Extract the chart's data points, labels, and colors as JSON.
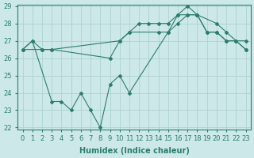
{
  "line1_x": [
    0,
    1,
    2,
    3,
    10,
    11,
    14,
    15,
    16,
    17,
    18,
    19,
    20,
    21,
    22,
    23
  ],
  "line1_y": [
    26.5,
    27.0,
    26.5,
    26.5,
    27.0,
    27.5,
    27.5,
    27.5,
    28.0,
    28.5,
    28.5,
    27.5,
    27.5,
    27.0,
    27.0,
    27.0
  ],
  "line2_x": [
    0,
    2,
    3,
    9,
    10,
    11,
    12,
    13,
    14,
    15,
    16,
    17,
    18,
    19,
    20,
    21,
    22,
    23
  ],
  "line2_y": [
    26.5,
    26.5,
    26.5,
    26.0,
    27.0,
    27.5,
    28.0,
    28.0,
    28.0,
    28.0,
    28.5,
    28.5,
    28.5,
    27.5,
    27.5,
    27.0,
    27.0,
    26.5
  ],
  "line3_x": [
    0,
    1,
    3,
    4,
    5,
    6,
    7,
    8,
    9,
    10,
    11,
    15,
    16,
    17,
    18,
    20,
    21,
    22,
    23
  ],
  "line3_y": [
    26.5,
    27.0,
    23.5,
    23.5,
    23.0,
    24.0,
    23.0,
    22.0,
    24.5,
    25.0,
    24.0,
    27.5,
    28.5,
    29.0,
    28.5,
    28.0,
    27.5,
    27.0,
    26.5
  ],
  "line_color": "#2d7d6e",
  "bg_color": "#cce8e8",
  "grid_color": "#a8cece",
  "xlabel": "Humidex (Indice chaleur)",
  "ylim": [
    22,
    29
  ],
  "xlim": [
    -0.5,
    23.5
  ],
  "yticks": [
    22,
    23,
    24,
    25,
    26,
    27,
    28,
    29
  ],
  "xticks": [
    0,
    1,
    2,
    3,
    4,
    5,
    6,
    7,
    8,
    9,
    10,
    11,
    12,
    13,
    14,
    15,
    16,
    17,
    18,
    19,
    20,
    21,
    22,
    23
  ],
  "xlabel_fontsize": 7,
  "tick_fontsize": 6,
  "marker": "D",
  "markersize": 2.0,
  "linewidth": 0.8
}
